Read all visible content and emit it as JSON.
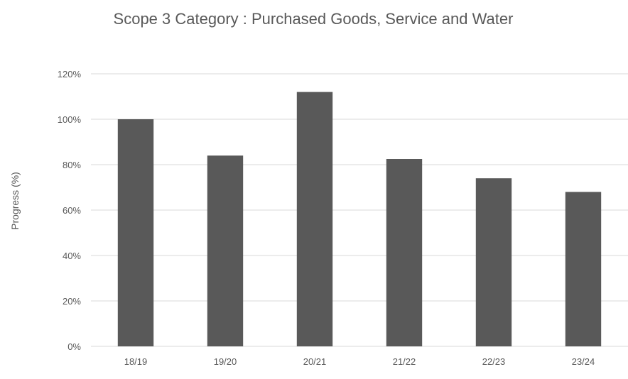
{
  "chart_data": {
    "type": "bar",
    "title": "Scope 3 Category : Purchased Goods, Service and Water",
    "xlabel": "",
    "ylabel": "Progress (%)",
    "categories": [
      "18/19",
      "19/20",
      "20/21",
      "21/22",
      "22/23",
      "23/24"
    ],
    "values": [
      100,
      84,
      112,
      82.5,
      74,
      68
    ],
    "ylim": [
      0,
      120
    ],
    "yticks": [
      0,
      20,
      40,
      60,
      80,
      100,
      120
    ],
    "ytick_labels": [
      "0%",
      "20%",
      "40%",
      "60%",
      "80%",
      "100%",
      "120%"
    ],
    "grid": true,
    "legend": "none",
    "bar_color": "#595959"
  }
}
